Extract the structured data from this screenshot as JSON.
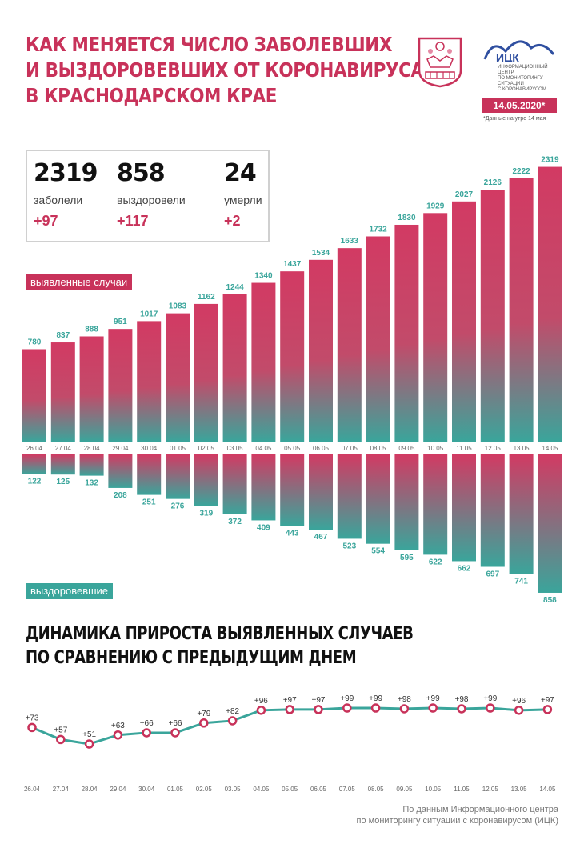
{
  "header": {
    "title_lines": [
      "Как меняется число заболевших",
      "и выздоровевших от коронавируса",
      "в Краснодарском крае"
    ],
    "org_abbr": "ИЦК",
    "org_lines": [
      "Информационный центр",
      "по мониторингу ситуации",
      "с коронавирусом"
    ],
    "date": "14.05.2020*",
    "date_note": "*Данные на утро 14 мая"
  },
  "stats": [
    {
      "value": "2319",
      "label": "заболели",
      "delta": "+97"
    },
    {
      "value": "858",
      "label": "выздоровели",
      "delta": "+117"
    },
    {
      "value": "24",
      "label": "умерли",
      "delta": "+2"
    }
  ],
  "labels": {
    "cases": "выявленные случаи",
    "recovered": "выздоровевшие",
    "growth_title_lines": [
      "Динамика прироста выявленных случаев",
      "по сравнению с предыдущим днем"
    ]
  },
  "source_lines": [
    "По данным Информационного центра",
    "по мониторингу ситуации с коронавирусом (ИЦК)"
  ],
  "colors": {
    "accent": "#c8325a",
    "teal": "#3aa59b"
  },
  "chart_data": [
    {
      "type": "bar",
      "categories": [
        "26.04",
        "27.04",
        "28.04",
        "29.04",
        "30.04",
        "01.05",
        "02.05",
        "03.05",
        "04.05",
        "05.05",
        "06.05",
        "07.05",
        "08.05",
        "09.05",
        "10.05",
        "11.05",
        "12.05",
        "13.05",
        "14.05"
      ],
      "series": [
        {
          "name": "выявленные случаи",
          "values": [
            780,
            837,
            888,
            951,
            1017,
            1083,
            1162,
            1244,
            1340,
            1437,
            1534,
            1633,
            1732,
            1830,
            1929,
            2027,
            2126,
            2222,
            2319
          ]
        },
        {
          "name": "выздоровевшие",
          "values": [
            122,
            125,
            132,
            208,
            251,
            276,
            319,
            372,
            409,
            443,
            467,
            523,
            554,
            595,
            622,
            662,
            697,
            741,
            858
          ]
        }
      ]
    },
    {
      "type": "line",
      "title": "Динамика прироста выявленных случаев по сравнению с предыдущим днем",
      "categories": [
        "26.04",
        "27.04",
        "28.04",
        "29.04",
        "30.04",
        "01.05",
        "02.05",
        "03.05",
        "04.05",
        "05.05",
        "06.05",
        "07.05",
        "08.05",
        "09.05",
        "10.05",
        "11.05",
        "12.05",
        "13.05",
        "14.05"
      ],
      "series": [
        {
          "values": [
            73,
            57,
            51,
            63,
            66,
            66,
            79,
            82,
            96,
            97,
            97,
            99,
            99,
            98,
            99,
            98,
            99,
            96,
            97
          ]
        }
      ],
      "point_labels": [
        "+73",
        "+57",
        "+51",
        "+63",
        "+66",
        "+66",
        "+79",
        "+82",
        "+96",
        "+97",
        "+97",
        "+99",
        "+99",
        "+98",
        "+99",
        "+98",
        "+99",
        "+96",
        "+97"
      ]
    }
  ]
}
